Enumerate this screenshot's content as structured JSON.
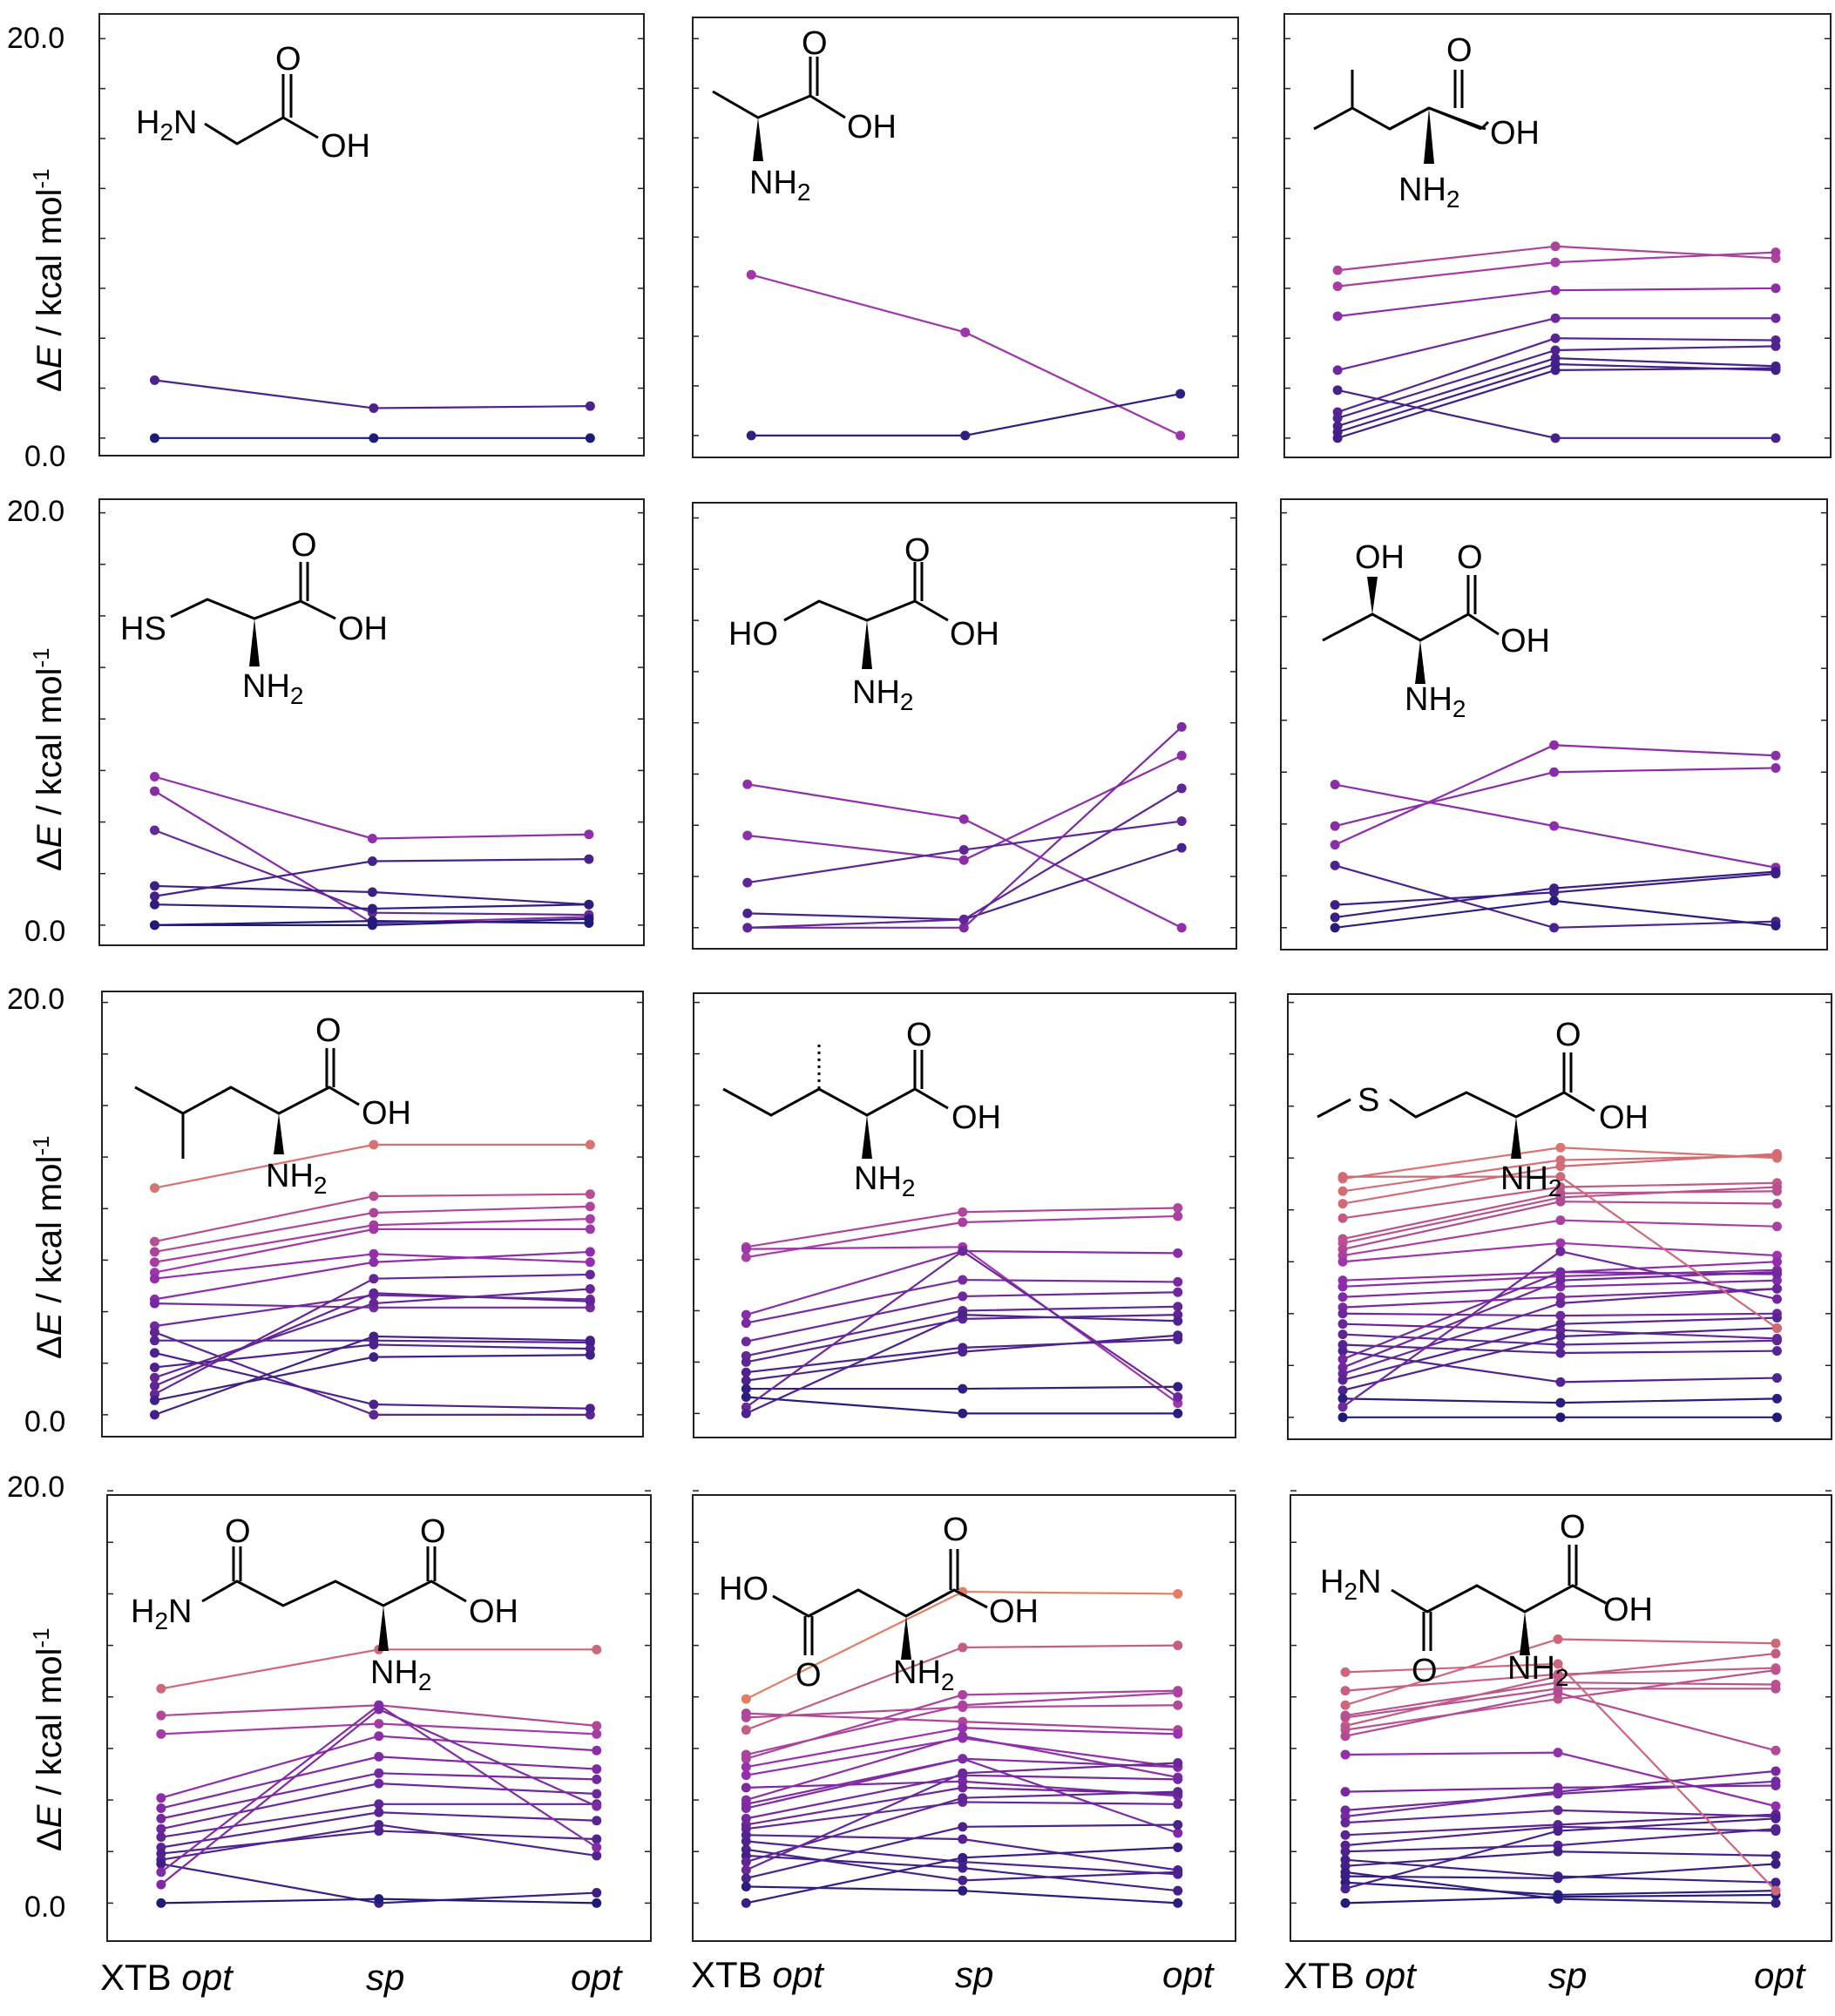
{
  "figure": {
    "y_tick_top": "20.0",
    "y_tick_bottom": "0.0",
    "y_label_delta": "Δ",
    "y_label_E": "E",
    "y_label_units": " / kcal mol",
    "y_label_exp": "-1",
    "x_labels": [
      {
        "prefix": "XTB ",
        "italic": "opt"
      },
      {
        "prefix": "",
        "italic": "sp"
      },
      {
        "prefix": "",
        "italic": "opt"
      }
    ]
  },
  "colors": {
    "low": "#1e1a78",
    "mid": "#9a2fb0",
    "high": "#f08c55"
  },
  "molecules": [
    {
      "name": "glycine",
      "labels": [
        "H2N",
        "OH",
        "O"
      ]
    },
    {
      "name": "alanine",
      "labels": [
        "NH2",
        "OH",
        "O"
      ]
    },
    {
      "name": "valine",
      "labels": [
        "NH2",
        "OH",
        "O"
      ]
    },
    {
      "name": "cysteine",
      "labels": [
        "HS",
        "NH2",
        "OH",
        "O"
      ]
    },
    {
      "name": "serine",
      "labels": [
        "HO",
        "NH2",
        "OH",
        "O"
      ]
    },
    {
      "name": "threonine",
      "labels": [
        "OH",
        "NH2",
        "OH",
        "O"
      ]
    },
    {
      "name": "leucine",
      "labels": [
        "NH2",
        "OH",
        "O"
      ]
    },
    {
      "name": "isoleucine",
      "labels": [
        "NH2",
        "OH",
        "O"
      ]
    },
    {
      "name": "methionine",
      "labels": [
        "S",
        "NH2",
        "OH",
        "O"
      ]
    },
    {
      "name": "glutamine",
      "labels": [
        "H2N",
        "O",
        "NH2",
        "OH",
        "O"
      ]
    },
    {
      "name": "aspartic-acid",
      "labels": [
        "HO",
        "O",
        "NH2",
        "OH",
        "O"
      ]
    },
    {
      "name": "asparagine",
      "labels": [
        "H2N",
        "O",
        "NH2",
        "OH",
        "O"
      ]
    }
  ],
  "chart_data": [
    {
      "type": "line",
      "panel": "glycine",
      "x": [
        "XTB opt",
        "sp",
        "opt"
      ],
      "ylim": [
        0,
        20
      ],
      "series": [
        [
          2.9,
          1.5,
          1.6
        ],
        [
          0.0,
          0.0,
          0.0
        ]
      ]
    },
    {
      "type": "line",
      "panel": "alanine",
      "x": [
        "XTB opt",
        "sp",
        "opt"
      ],
      "ylim": [
        0,
        20
      ],
      "series": [
        [
          8.1,
          5.2,
          0.0
        ],
        [
          0.0,
          0.0,
          2.1
        ]
      ]
    },
    {
      "type": "line",
      "panel": "valine",
      "x": [
        "XTB opt",
        "sp",
        "opt"
      ],
      "ylim": [
        0,
        20
      ],
      "series": [
        [
          8.4,
          9.6,
          9.0
        ],
        [
          7.6,
          8.8,
          9.3
        ],
        [
          6.1,
          7.4,
          7.5
        ],
        [
          3.4,
          6.0,
          6.0
        ],
        [
          2.4,
          0.0,
          0.0
        ],
        [
          1.3,
          5.0,
          4.9
        ],
        [
          1.0,
          4.4,
          4.6
        ],
        [
          0.6,
          4.0,
          3.6
        ],
        [
          0.3,
          3.7,
          3.4
        ],
        [
          0.0,
          3.4,
          3.5
        ]
      ]
    },
    {
      "type": "line",
      "panel": "cysteine",
      "x": [
        "XTB opt",
        "sp",
        "opt"
      ],
      "ylim": [
        0,
        20
      ],
      "series": [
        [
          7.2,
          4.2,
          4.4
        ],
        [
          6.5,
          0.1,
          0.4
        ],
        [
          4.6,
          0.6,
          0.5
        ],
        [
          1.9,
          1.6,
          1.0
        ],
        [
          1.4,
          3.1,
          3.2
        ],
        [
          1.0,
          0.8,
          1.0
        ],
        [
          0.0,
          0.2,
          0.1
        ],
        [
          0.0,
          0.0,
          0.3
        ]
      ]
    },
    {
      "type": "line",
      "panel": "serine",
      "x": [
        "XTB opt",
        "sp",
        "opt"
      ],
      "ylim": [
        0,
        20
      ],
      "series": [
        [
          7.0,
          5.3,
          0.0
        ],
        [
          4.5,
          3.3,
          8.4
        ],
        [
          2.2,
          3.8,
          5.2
        ],
        [
          0.7,
          0.4,
          3.9
        ],
        [
          0.0,
          0.0,
          9.8
        ],
        [
          0.0,
          0.4,
          6.8
        ]
      ]
    },
    {
      "type": "line",
      "panel": "threonine",
      "x": [
        "XTB opt",
        "sp",
        "opt"
      ],
      "ylim": [
        0,
        20
      ],
      "series": [
        [
          6.9,
          4.9,
          2.9
        ],
        [
          4.9,
          7.5,
          7.7
        ],
        [
          4.0,
          8.8,
          8.3
        ],
        [
          3.0,
          0.0,
          0.3
        ],
        [
          1.1,
          1.7,
          2.6
        ],
        [
          0.5,
          1.9,
          2.7
        ],
        [
          0.0,
          1.3,
          0.1
        ]
      ]
    },
    {
      "type": "line",
      "panel": "leucine",
      "x": [
        "XTB opt",
        "sp",
        "opt"
      ],
      "ylim": [
        0,
        20
      ],
      "series": [
        [
          11.0,
          13.1,
          13.1
        ],
        [
          8.4,
          10.6,
          10.7
        ],
        [
          7.9,
          9.8,
          10.1
        ],
        [
          7.4,
          9.2,
          9.5
        ],
        [
          6.9,
          9.0,
          9.0
        ],
        [
          6.6,
          7.8,
          7.4
        ],
        [
          5.6,
          7.4,
          7.9
        ],
        [
          5.4,
          5.2,
          5.2
        ],
        [
          4.3,
          5.8,
          5.6
        ],
        [
          4.0,
          0.0,
          0.0
        ],
        [
          3.6,
          3.6,
          3.5
        ],
        [
          3.0,
          0.5,
          0.3
        ],
        [
          2.3,
          3.4,
          3.2
        ],
        [
          1.8,
          5.4,
          6.1
        ],
        [
          1.4,
          5.9,
          5.5
        ],
        [
          1.0,
          6.6,
          6.8
        ],
        [
          0.7,
          2.8,
          2.9
        ],
        [
          0.0,
          3.8,
          3.6
        ]
      ]
    },
    {
      "type": "line",
      "panel": "isoleucine",
      "x": [
        "XTB opt",
        "sp",
        "opt"
      ],
      "ylim": [
        0,
        20
      ],
      "series": [
        [
          8.1,
          9.8,
          10.0
        ],
        [
          7.6,
          9.3,
          9.6
        ],
        [
          8.0,
          8.1,
          0.5
        ],
        [
          4.8,
          7.9,
          7.8
        ],
        [
          4.4,
          6.5,
          6.4
        ],
        [
          3.5,
          5.7,
          5.9
        ],
        [
          2.8,
          5.0,
          5.2
        ],
        [
          2.5,
          4.6,
          4.8
        ],
        [
          2.0,
          3.2,
          3.6
        ],
        [
          1.6,
          3.0,
          3.8
        ],
        [
          1.2,
          1.2,
          1.3
        ],
        [
          0.8,
          0.0,
          0.0
        ],
        [
          0.3,
          7.9,
          0.8
        ],
        [
          0.0,
          4.8,
          4.5
        ]
      ]
    },
    {
      "type": "line",
      "panel": "methionine",
      "x": [
        "XTB opt",
        "sp",
        "opt"
      ],
      "ylim": [
        0,
        20
      ],
      "series": [
        [
          11.5,
          13.0,
          12.5
        ],
        [
          10.9,
          12.4,
          12.6
        ],
        [
          10.3,
          12.1,
          12.7
        ],
        [
          9.6,
          11.1,
          11.3
        ],
        [
          8.6,
          10.8,
          10.9
        ],
        [
          8.4,
          10.6,
          11.1
        ],
        [
          8.1,
          10.4,
          10.3
        ],
        [
          7.8,
          9.5,
          9.2
        ],
        [
          7.5,
          8.4,
          7.8
        ],
        [
          6.6,
          7.0,
          7.5
        ],
        [
          6.3,
          6.8,
          7.1
        ],
        [
          5.8,
          6.3,
          6.6
        ],
        [
          5.3,
          5.8,
          6.2
        ],
        [
          5.0,
          4.9,
          5.0
        ],
        [
          4.5,
          4.2,
          3.8
        ],
        [
          4.0,
          3.5,
          3.7
        ],
        [
          3.5,
          3.1,
          3.2
        ],
        [
          3.2,
          1.7,
          1.9
        ],
        [
          2.8,
          7.0,
          6.9
        ],
        [
          2.4,
          6.6,
          7.0
        ],
        [
          2.1,
          5.5,
          6.2
        ],
        [
          1.8,
          4.5,
          4.8
        ],
        [
          1.3,
          3.9,
          4.3
        ],
        [
          0.9,
          0.7,
          0.9
        ],
        [
          0.5,
          8.0,
          5.7
        ],
        [
          0.0,
          0.0,
          0.0
        ],
        [
          11.6,
          11.6,
          4.3
        ]
      ]
    },
    {
      "type": "line",
      "panel": "glutamine",
      "x": [
        "XTB opt",
        "sp",
        "opt"
      ],
      "ylim": [
        0,
        20
      ],
      "series": [
        [
          10.4,
          12.3,
          12.3
        ],
        [
          9.1,
          9.6,
          8.6
        ],
        [
          8.2,
          8.7,
          8.2
        ],
        [
          5.1,
          8.1,
          7.4
        ],
        [
          4.6,
          7.1,
          6.5
        ],
        [
          4.1,
          6.3,
          6.0
        ],
        [
          3.6,
          5.8,
          5.3
        ],
        [
          3.2,
          4.8,
          4.8
        ],
        [
          2.7,
          4.4,
          4.0
        ],
        [
          2.4,
          3.5,
          3.1
        ],
        [
          2.1,
          3.8,
          2.3
        ],
        [
          1.9,
          0.0,
          0.5
        ],
        [
          1.5,
          9.6,
          2.7
        ],
        [
          0.9,
          9.4,
          4.7
        ],
        [
          0.0,
          0.2,
          0.0
        ]
      ]
    },
    {
      "type": "line",
      "panel": "aspartic-acid",
      "x": [
        "XTB opt",
        "sp",
        "opt"
      ],
      "ylim": [
        0,
        20
      ],
      "series": [
        [
          9.9,
          15.1,
          15.0
        ],
        [
          9.2,
          8.8,
          8.4
        ],
        [
          9.0,
          9.5,
          9.6
        ],
        [
          8.4,
          12.4,
          12.5
        ],
        [
          7.2,
          9.6,
          10.2
        ],
        [
          7.0,
          10.1,
          10.3
        ],
        [
          6.6,
          8.5,
          8.2
        ],
        [
          6.2,
          8.0,
          6.6
        ],
        [
          5.6,
          5.9,
          5.2
        ],
        [
          5.0,
          8.1,
          6.1
        ],
        [
          4.8,
          7.0,
          6.6
        ],
        [
          4.6,
          7.0,
          3.4
        ],
        [
          4.1,
          6.2,
          6.0
        ],
        [
          3.8,
          5.6,
          5.3
        ],
        [
          3.6,
          4.9,
          4.8
        ],
        [
          3.3,
          3.1,
          1.6
        ],
        [
          3.0,
          2.0,
          1.4
        ],
        [
          2.6,
          1.1,
          1.5
        ],
        [
          2.3,
          1.7,
          0.6
        ],
        [
          2.0,
          5.1,
          5.4
        ],
        [
          1.6,
          6.3,
          6.8
        ],
        [
          1.2,
          3.7,
          3.8
        ],
        [
          0.8,
          0.6,
          0.0
        ],
        [
          0.0,
          2.2,
          2.7
        ]
      ]
    },
    {
      "type": "line",
      "panel": "asparagine",
      "x": [
        "XTB opt",
        "sp",
        "opt"
      ],
      "ylim": [
        0,
        20
      ],
      "series": [
        [
          10.3,
          11.1,
          11.4
        ],
        [
          9.6,
          12.8,
          12.6
        ],
        [
          9.1,
          10.7,
          10.6
        ],
        [
          9.0,
          10.4,
          10.4
        ],
        [
          8.6,
          11.0,
          12.1
        ],
        [
          8.4,
          9.9,
          11.3
        ],
        [
          8.1,
          10.2,
          7.4
        ],
        [
          7.2,
          7.3,
          4.7
        ],
        [
          5.4,
          5.6,
          5.7
        ],
        [
          4.5,
          5.3,
          5.9
        ],
        [
          4.2,
          5.4,
          6.4
        ],
        [
          3.9,
          4.5,
          4.2
        ],
        [
          3.3,
          3.8,
          4.3
        ],
        [
          2.8,
          3.7,
          3.5
        ],
        [
          2.5,
          2.8,
          3.6
        ],
        [
          2.1,
          1.3,
          1.0
        ],
        [
          1.8,
          2.5,
          2.3
        ],
        [
          1.5,
          0.2,
          0.0
        ],
        [
          1.3,
          1.2,
          1.9
        ],
        [
          1.0,
          0.4,
          0.6
        ],
        [
          0.7,
          3.5,
          4.1
        ],
        [
          0.0,
          0.3,
          0.4
        ],
        [
          11.2,
          11.6,
          0.6
        ]
      ]
    }
  ]
}
